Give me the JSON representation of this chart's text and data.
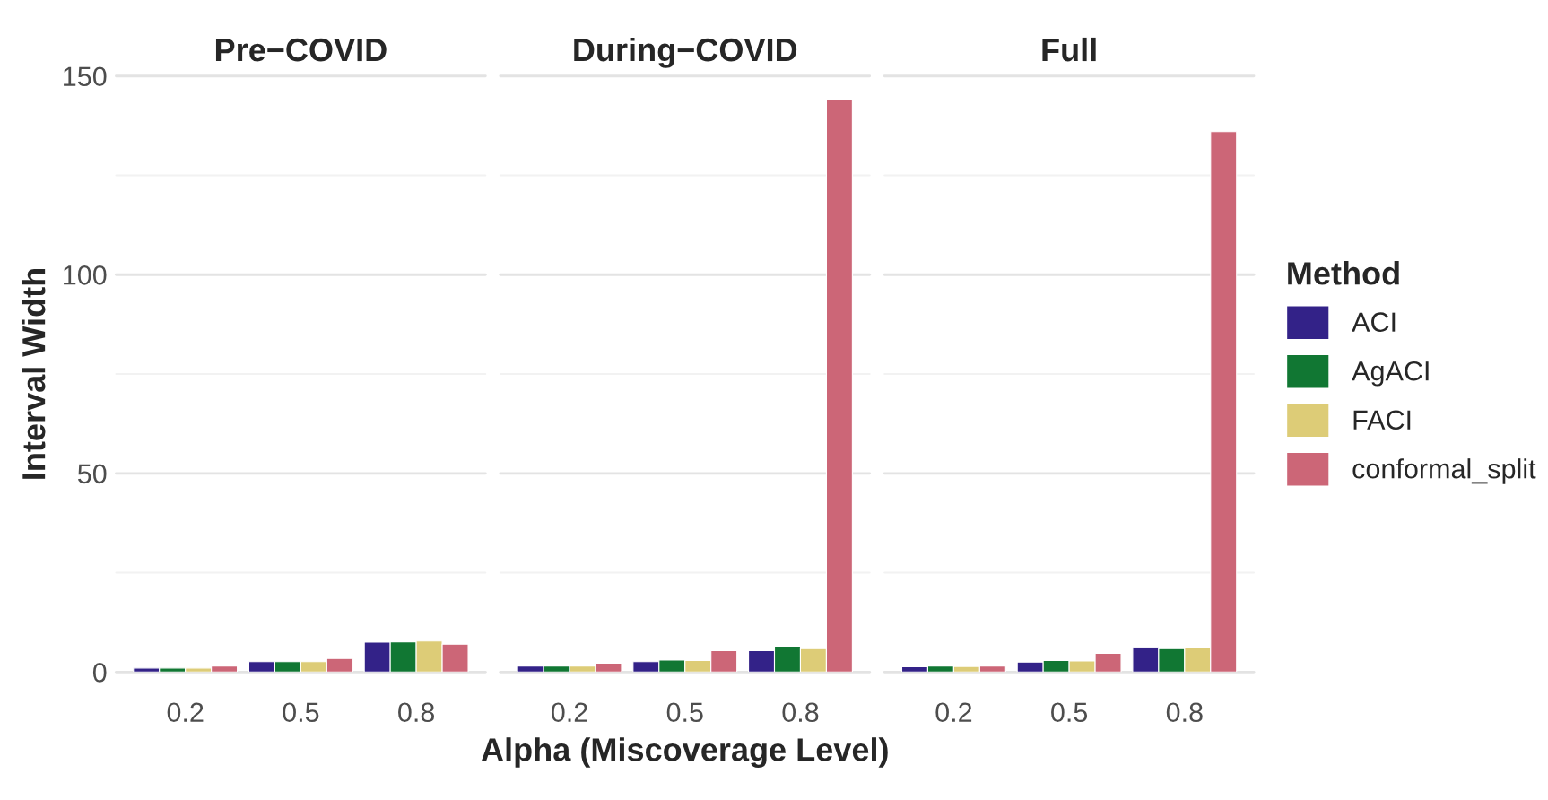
{
  "chart_data": [
    {
      "type": "bar",
      "title": "Pre−COVID",
      "ylabel": "Interval Width",
      "categories": [
        "0.2",
        "0.5",
        "0.8"
      ],
      "ylim": [
        0,
        150
      ],
      "yticks": [
        0,
        {
          "value": 25,
          "label": null
        },
        50,
        {
          "value": 75,
          "label": null
        },
        100,
        {
          "value": 125,
          "label": null
        },
        150
      ],
      "grid": "y",
      "series": [
        {
          "color": "#332288",
          "values": [
            1.0,
            2.6,
            7.5
          ]
        },
        {
          "color": "#117733",
          "values": [
            1.0,
            2.6,
            7.6
          ]
        },
        {
          "color": "#ddcc77",
          "values": [
            1.0,
            2.6,
            7.8
          ]
        },
        {
          "color": "#cc6677",
          "values": [
            1.5,
            3.4,
            7.0
          ]
        }
      ]
    },
    {
      "type": "bar",
      "title": "During−COVID",
      "xlabel": "Alpha (Miscoverage Level)",
      "categories": [
        "0.2",
        "0.5",
        "0.8"
      ],
      "ylim": [
        0,
        150
      ],
      "yticks": [
        0,
        {
          "value": 25,
          "label": null
        },
        50,
        {
          "value": 75,
          "label": null
        },
        100,
        {
          "value": 125,
          "label": null
        },
        150
      ],
      "grid": "y",
      "tick_labels": "x",
      "series": [
        {
          "color": "#332288",
          "values": [
            1.5,
            2.6,
            5.4
          ]
        },
        {
          "color": "#117733",
          "values": [
            1.5,
            3.0,
            6.5
          ]
        },
        {
          "color": "#ddcc77",
          "values": [
            1.5,
            2.9,
            5.9
          ]
        },
        {
          "color": "#cc6677",
          "values": [
            2.2,
            5.4,
            144
          ]
        }
      ]
    },
    {
      "type": "bar",
      "title": "Full",
      "legend_title": "Method",
      "categories": [
        "0.2",
        "0.5",
        "0.8"
      ],
      "ylim": [
        0,
        150
      ],
      "yticks": [
        0,
        {
          "value": 25,
          "label": null
        },
        50,
        {
          "value": 75,
          "label": null
        },
        100,
        {
          "value": 125,
          "label": null
        },
        150
      ],
      "grid": "y",
      "legend": "right",
      "tick_labels": "x",
      "series": [
        {
          "name": "ACI",
          "color": "#332288",
          "values": [
            1.3,
            2.5,
            6.2
          ]
        },
        {
          "name": "AgACI",
          "color": "#117733",
          "values": [
            1.5,
            2.9,
            5.9
          ]
        },
        {
          "name": "FACI",
          "color": "#ddcc77",
          "values": [
            1.4,
            2.8,
            6.3
          ]
        },
        {
          "name": "conformal_split",
          "color": "#cc6677",
          "values": [
            1.5,
            4.7,
            136
          ]
        }
      ]
    }
  ]
}
